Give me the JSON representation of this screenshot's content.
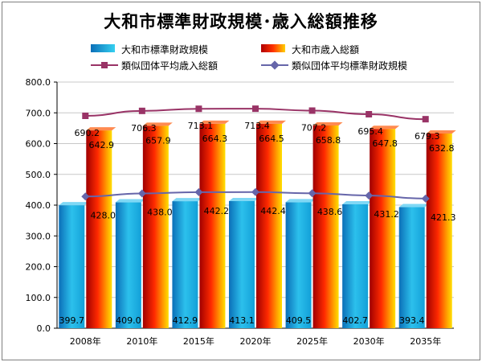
{
  "colors": {
    "scale_bar": "#1fa8d8",
    "revenue_bar": "#e23a00",
    "avg_revenue_line": "#993366",
    "avg_scale_line": "#6666aa",
    "grid": "#c8c8c8"
  },
  "chart_data": {
    "type": "bar",
    "title": "大和市標準財政規模･歳入総額推移",
    "xlabel": "",
    "ylabel": "",
    "ylim": [
      0,
      800
    ],
    "ytick_step": 100,
    "ytick_labels": [
      "0.0",
      "100.0",
      "200.0",
      "300.0",
      "400.0",
      "500.0",
      "600.0",
      "700.0",
      "800.0"
    ],
    "grid": true,
    "legend_position": "top",
    "categories": [
      "2008年",
      "2010年",
      "2015年",
      "2020年",
      "2025年",
      "2030年",
      "2035年"
    ],
    "series": [
      {
        "name": "大和市標準財政規模",
        "kind": "bar",
        "color": "#1fa8d8",
        "values": [
          399.7,
          409.0,
          412.9,
          413.1,
          409.5,
          402.7,
          393.4
        ],
        "labels": [
          "399.7",
          "409.0",
          "412.9",
          "413.1",
          "409.5",
          "402.7",
          "393.4"
        ]
      },
      {
        "name": "大和市歳入総額",
        "kind": "bar",
        "color": "#e23a00",
        "values": [
          642.9,
          657.9,
          664.3,
          664.5,
          658.8,
          647.8,
          632.8
        ],
        "labels": [
          "642.9",
          "657.9",
          "664.3",
          "664.5",
          "658.8",
          "647.8",
          "632.8"
        ]
      },
      {
        "name": "類似団体平均歳入総額",
        "kind": "line",
        "marker": "square",
        "color": "#993366",
        "values": [
          690.2,
          706.3,
          713.1,
          713.4,
          707.2,
          695.4,
          679.3
        ],
        "labels": [
          "690.2",
          "706.3",
          "713.1",
          "713.4",
          "707.2",
          "695.4",
          "679.3"
        ]
      },
      {
        "name": "類似団体平均標準財政規模",
        "kind": "line",
        "marker": "diamond",
        "color": "#6666aa",
        "values": [
          428.0,
          438.0,
          442.2,
          442.4,
          438.6,
          431.2,
          421.3
        ],
        "labels": [
          "428.0",
          "438.0",
          "442.2",
          "442.4",
          "438.6",
          "431.2",
          "421.3"
        ]
      }
    ]
  }
}
